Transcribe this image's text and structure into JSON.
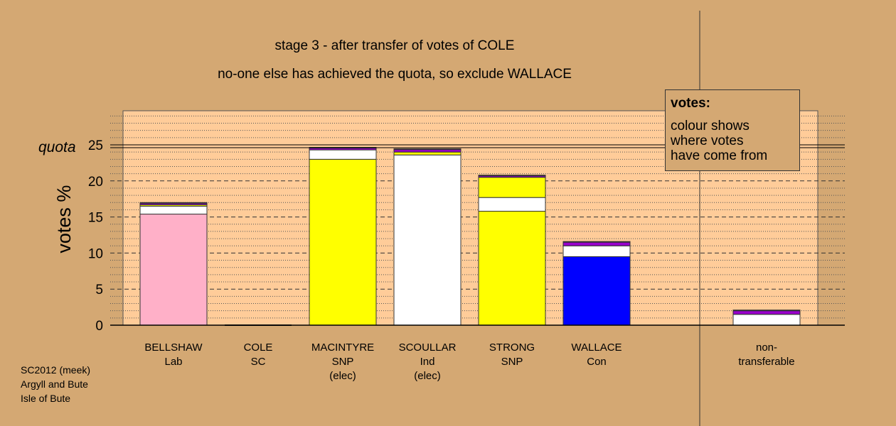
{
  "titles": {
    "line1": "stage 3 - after transfer of votes of COLE",
    "line2": "no-one else has achieved the quota, so exclude WALLACE"
  },
  "legend": {
    "title": "votes:",
    "text_lines": [
      "colour shows",
      "where votes",
      "have come from"
    ]
  },
  "footer": [
    "SC2012 (meek)",
    "Argyll and Bute",
    "Isle of Bute"
  ],
  "chart_data": {
    "type": "bar",
    "stacked": true,
    "ylabel": "votes %",
    "ylim": [
      0,
      30
    ],
    "yticks": [
      0,
      5,
      10,
      15,
      20,
      25
    ],
    "quota": 24.8,
    "quota_label": "quota",
    "categories": [
      {
        "lines": [
          "BELLSHAW",
          "Lab"
        ]
      },
      {
        "lines": [
          "COLE",
          "SC"
        ]
      },
      {
        "lines": [
          "MACINTYRE",
          "SNP",
          "(elec)"
        ]
      },
      {
        "lines": [
          "SCOULLAR",
          "Ind",
          "(elec)"
        ]
      },
      {
        "lines": [
          "STRONG",
          "SNP"
        ]
      },
      {
        "lines": [
          "WALLACE",
          "Con"
        ]
      },
      {
        "lines": [
          "non-",
          "transferable"
        ]
      }
    ],
    "stacks": [
      [
        {
          "value": 15.4,
          "color": "#ffb0c8"
        },
        {
          "value": 1.1,
          "color": "#ffffff"
        },
        {
          "value": 0.2,
          "color": "#ffff00"
        },
        {
          "value": 0.2,
          "color": "#9900cc"
        },
        {
          "value": 0.1,
          "color": "#0000ff"
        }
      ],
      [],
      [
        {
          "value": 23.0,
          "color": "#ffff00"
        },
        {
          "value": 1.3,
          "color": "#ffffff"
        },
        {
          "value": 0.25,
          "color": "#9900cc"
        },
        {
          "value": 0.1,
          "color": "#0000ff"
        }
      ],
      [
        {
          "value": 23.6,
          "color": "#ffffff"
        },
        {
          "value": 0.4,
          "color": "#ffff00"
        },
        {
          "value": 0.35,
          "color": "#9900cc"
        },
        {
          "value": 0.1,
          "color": "#0000ff"
        }
      ],
      [
        {
          "value": 15.8,
          "color": "#ffff00"
        },
        {
          "value": 1.9,
          "color": "#ffffff"
        },
        {
          "value": 2.8,
          "color": "#ffff00"
        },
        {
          "value": 0.2,
          "color": "#9900cc"
        },
        {
          "value": 0.1,
          "color": "#0000ff"
        }
      ],
      [
        {
          "value": 9.5,
          "color": "#0000ff"
        },
        {
          "value": 1.5,
          "color": "#ffffff"
        },
        {
          "value": 0.5,
          "color": "#9900cc"
        },
        {
          "value": 0.1,
          "color": "#0000ff"
        }
      ],
      [
        {
          "value": 1.5,
          "color": "#ffffff"
        },
        {
          "value": 0.5,
          "color": "#9900cc"
        },
        {
          "value": 0.1,
          "color": "#0000ff"
        }
      ]
    ]
  }
}
